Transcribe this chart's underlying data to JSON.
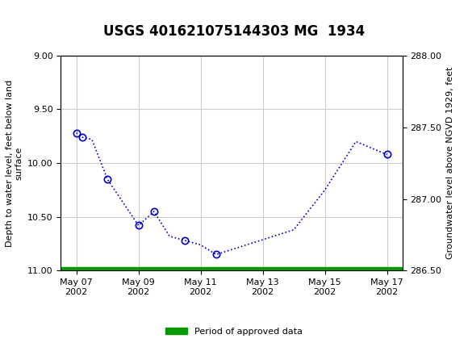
{
  "title": "USGS 401621075144303 MG  1934",
  "ylabel_left": "Depth to water level, feet below land\nsurface",
  "ylabel_right": "Groundwater level above NGVD 1929, feet",
  "xlabel": "",
  "background_color": "#ffffff",
  "plot_bg_color": "#ffffff",
  "header_color": "#006633",
  "ylim_left": [
    9.0,
    11.0
  ],
  "ylim_right": [
    286.5,
    288.0
  ],
  "y_ticks_left": [
    9.0,
    9.5,
    10.0,
    10.5,
    11.0
  ],
  "y_ticks_right": [
    286.5,
    287.0,
    287.5,
    288.0
  ],
  "data_x_days": [
    0,
    0.1,
    0.2,
    0.5,
    1.0,
    2.0,
    2.5,
    3.0,
    3.5,
    4.0,
    4.5,
    7.0,
    8.0,
    9.0,
    10.0
  ],
  "data_y_depth": [
    9.72,
    9.74,
    9.76,
    9.78,
    10.15,
    10.58,
    10.45,
    10.68,
    10.72,
    10.76,
    10.85,
    10.62,
    10.25,
    9.8,
    9.92
  ],
  "points_x_days": [
    0,
    0.2,
    1.0,
    2.0,
    2.5,
    3.5,
    4.5,
    10.0
  ],
  "points_y_depth": [
    9.72,
    9.76,
    10.15,
    10.58,
    10.45,
    10.72,
    10.85,
    9.92
  ],
  "line_color": "#0000cc",
  "marker_color": "#0000cc",
  "marker_face": "none",
  "marker_size": 6,
  "line_style": "dotted",
  "green_bar_color": "#009900",
  "legend_label": "Period of approved data",
  "x_tick_labels": [
    "May 07\n2002",
    "May 09\n2002",
    "May 11\n2002",
    "May 13\n2002",
    "May 15\n2002",
    "May 17\n2002"
  ],
  "x_tick_positions": [
    0,
    2,
    4,
    6,
    8,
    10
  ],
  "grid_color": "#cccccc",
  "usgs_logo_color": "#006633"
}
